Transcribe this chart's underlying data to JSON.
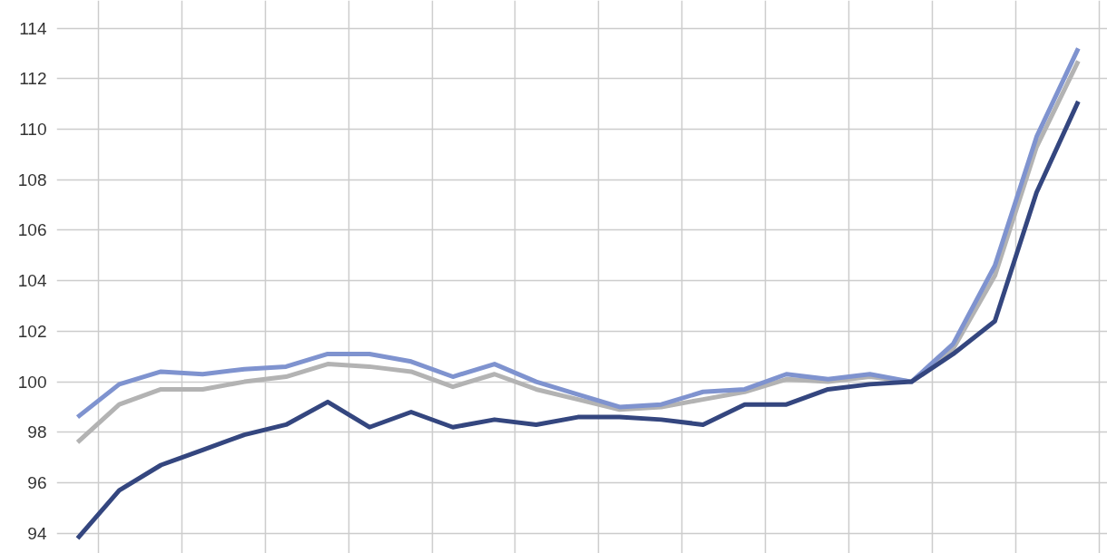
{
  "chart_data": {
    "type": "line",
    "categories": [
      null,
      null,
      null,
      null,
      null,
      null,
      null,
      null,
      null,
      null,
      null,
      null,
      null,
      null,
      null,
      null,
      null,
      null,
      null,
      null,
      null,
      null,
      null,
      null,
      null
    ],
    "series": [
      {
        "color": "#b3b3b3",
        "values": [
          97.6,
          99.1,
          99.7,
          99.7,
          100.0,
          100.2,
          100.7,
          100.6,
          100.4,
          99.8,
          100.3,
          99.7,
          99.3,
          98.9,
          99.0,
          99.3,
          99.6,
          100.1,
          100.0,
          100.2,
          100.0,
          101.3,
          104.2,
          109.3,
          112.7
        ]
      },
      {
        "color": "#7f93cf",
        "values": [
          98.6,
          99.9,
          100.4,
          100.3,
          100.5,
          100.6,
          101.1,
          101.1,
          100.8,
          100.2,
          100.7,
          100.0,
          99.5,
          99.0,
          99.1,
          99.6,
          99.7,
          100.3,
          100.1,
          100.3,
          100.0,
          101.5,
          104.6,
          109.7,
          113.2
        ]
      },
      {
        "color": "#34467f",
        "values": [
          93.8,
          95.7,
          96.7,
          97.3,
          97.9,
          98.3,
          99.2,
          98.2,
          98.8,
          98.2,
          98.5,
          98.3,
          98.6,
          98.6,
          98.5,
          98.3,
          99.1,
          99.1,
          99.7,
          99.9,
          100.0,
          101.1,
          102.4,
          107.5,
          111.1
        ]
      }
    ],
    "ylim": [
      93.2,
      115.1
    ],
    "yticks": [
      94,
      96,
      98,
      100,
      102,
      104,
      106,
      108,
      110,
      112,
      114
    ],
    "grid": true,
    "tick_labels": "y",
    "marker": "none",
    "line_style": "solid"
  }
}
